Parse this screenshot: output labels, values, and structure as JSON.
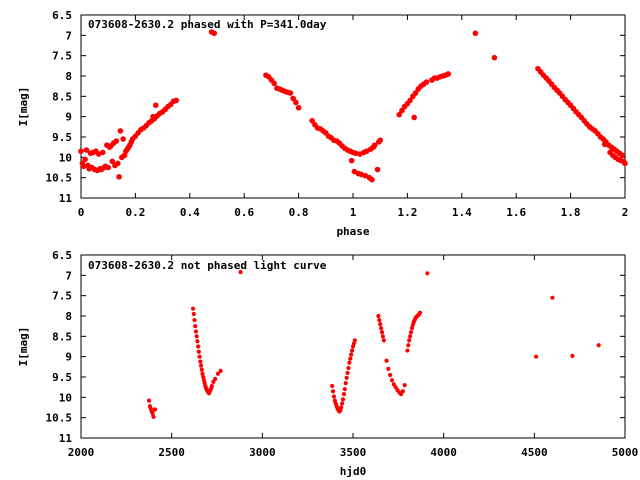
{
  "chart_data": [
    {
      "type": "scatter",
      "title": "073608-2630.2 phased with P=341.0day",
      "xlabel": "phase",
      "ylabel": "I[mag]",
      "xlim": [
        0,
        2
      ],
      "ylim": [
        11,
        6.5
      ],
      "y_inverted": true,
      "xticks": [
        "0",
        "0.2",
        "0.4",
        "0.6",
        "0.8",
        "1",
        "1.2",
        "1.4",
        "1.6",
        "1.8",
        "2"
      ],
      "yticks": [
        "6.5",
        "7",
        "7.5",
        "8",
        "8.5",
        "9",
        "9.5",
        "10",
        "10.5",
        "11"
      ],
      "grid": false,
      "marker_color": "#ff0000",
      "series": [
        {
          "points": [
            [
              0.0,
              9.85
            ],
            [
              0.005,
              10.15
            ],
            [
              0.01,
              10.22
            ],
            [
              0.015,
              10.05
            ],
            [
              0.02,
              9.82
            ],
            [
              0.025,
              10.2
            ],
            [
              0.03,
              10.28
            ],
            [
              0.035,
              9.9
            ],
            [
              0.04,
              10.25
            ],
            [
              0.045,
              9.88
            ],
            [
              0.05,
              10.3
            ],
            [
              0.055,
              9.85
            ],
            [
              0.06,
              10.32
            ],
            [
              0.065,
              9.92
            ],
            [
              0.07,
              10.28
            ],
            [
              0.075,
              10.3
            ],
            [
              0.08,
              9.88
            ],
            [
              0.085,
              10.25
            ],
            [
              0.09,
              10.22
            ],
            [
              0.095,
              9.7
            ],
            [
              0.1,
              10.25
            ],
            [
              0.105,
              9.75
            ],
            [
              0.11,
              9.72
            ],
            [
              0.115,
              10.1
            ],
            [
              0.12,
              9.65
            ],
            [
              0.125,
              10.2
            ],
            [
              0.13,
              9.6
            ],
            [
              0.135,
              10.15
            ],
            [
              0.14,
              10.48
            ],
            [
              0.145,
              9.35
            ],
            [
              0.15,
              10.0
            ],
            [
              0.155,
              9.55
            ],
            [
              0.16,
              9.95
            ],
            [
              0.165,
              9.85
            ],
            [
              0.17,
              9.8
            ],
            [
              0.175,
              9.75
            ],
            [
              0.18,
              9.7
            ],
            [
              0.185,
              9.62
            ],
            [
              0.19,
              9.55
            ],
            [
              0.2,
              9.48
            ],
            [
              0.21,
              9.4
            ],
            [
              0.22,
              9.32
            ],
            [
              0.23,
              9.28
            ],
            [
              0.24,
              9.22
            ],
            [
              0.25,
              9.15
            ],
            [
              0.26,
              9.1
            ],
            [
              0.265,
              9.0
            ],
            [
              0.27,
              9.05
            ],
            [
              0.275,
              8.72
            ],
            [
              0.28,
              8.98
            ],
            [
              0.29,
              8.92
            ],
            [
              0.3,
              8.88
            ],
            [
              0.31,
              8.82
            ],
            [
              0.32,
              8.75
            ],
            [
              0.33,
              8.7
            ],
            [
              0.34,
              8.62
            ],
            [
              0.35,
              8.6
            ],
            [
              0.48,
              6.92
            ],
            [
              0.49,
              6.95
            ],
            [
              0.68,
              7.98
            ],
            [
              0.69,
              8.02
            ],
            [
              0.7,
              8.1
            ],
            [
              0.71,
              8.18
            ],
            [
              0.72,
              8.3
            ],
            [
              0.73,
              8.32
            ],
            [
              0.74,
              8.35
            ],
            [
              0.75,
              8.38
            ],
            [
              0.76,
              8.4
            ],
            [
              0.77,
              8.42
            ],
            [
              0.78,
              8.55
            ],
            [
              0.79,
              8.65
            ],
            [
              0.8,
              8.78
            ],
            [
              0.85,
              9.1
            ],
            [
              0.86,
              9.2
            ],
            [
              0.87,
              9.28
            ],
            [
              0.88,
              9.3
            ],
            [
              0.89,
              9.35
            ],
            [
              0.9,
              9.4
            ],
            [
              0.91,
              9.48
            ],
            [
              0.92,
              9.52
            ],
            [
              0.93,
              9.58
            ],
            [
              0.94,
              9.6
            ],
            [
              0.95,
              9.65
            ],
            [
              0.96,
              9.72
            ],
            [
              0.97,
              9.78
            ],
            [
              0.98,
              9.82
            ],
            [
              0.99,
              9.85
            ],
            [
              0.995,
              10.08
            ],
            [
              1.0,
              9.88
            ],
            [
              1.005,
              10.35
            ],
            [
              1.01,
              9.9
            ],
            [
              1.02,
              10.4
            ],
            [
              1.025,
              9.92
            ],
            [
              1.03,
              10.42
            ],
            [
              1.04,
              9.88
            ],
            [
              1.045,
              10.45
            ],
            [
              1.05,
              9.85
            ],
            [
              1.06,
              10.5
            ],
            [
              1.065,
              9.8
            ],
            [
              1.07,
              10.55
            ],
            [
              1.075,
              9.75
            ],
            [
              1.08,
              9.7
            ],
            [
              1.09,
              10.3
            ],
            [
              1.095,
              9.62
            ],
            [
              1.1,
              9.58
            ],
            [
              1.17,
              8.95
            ],
            [
              1.18,
              8.85
            ],
            [
              1.19,
              8.75
            ],
            [
              1.2,
              8.68
            ],
            [
              1.21,
              8.6
            ],
            [
              1.22,
              8.5
            ],
            [
              1.225,
              9.02
            ],
            [
              1.23,
              8.42
            ],
            [
              1.24,
              8.32
            ],
            [
              1.25,
              8.25
            ],
            [
              1.26,
              8.2
            ],
            [
              1.27,
              8.15
            ],
            [
              1.29,
              8.1
            ],
            [
              1.3,
              8.05
            ],
            [
              1.31,
              8.05
            ],
            [
              1.32,
              8.02
            ],
            [
              1.33,
              8.0
            ],
            [
              1.34,
              7.98
            ],
            [
              1.35,
              7.95
            ],
            [
              1.45,
              6.95
            ],
            [
              1.52,
              7.55
            ],
            [
              1.68,
              7.82
            ],
            [
              1.69,
              7.9
            ],
            [
              1.7,
              7.98
            ],
            [
              1.71,
              8.05
            ],
            [
              1.72,
              8.12
            ],
            [
              1.73,
              8.2
            ],
            [
              1.74,
              8.28
            ],
            [
              1.75,
              8.35
            ],
            [
              1.76,
              8.42
            ],
            [
              1.77,
              8.5
            ],
            [
              1.78,
              8.58
            ],
            [
              1.79,
              8.65
            ],
            [
              1.8,
              8.72
            ],
            [
              1.81,
              8.8
            ],
            [
              1.82,
              8.88
            ],
            [
              1.83,
              8.95
            ],
            [
              1.84,
              9.02
            ],
            [
              1.85,
              9.1
            ],
            [
              1.86,
              9.18
            ],
            [
              1.87,
              9.25
            ],
            [
              1.88,
              9.3
            ],
            [
              1.89,
              9.35
            ],
            [
              1.9,
              9.42
            ],
            [
              1.91,
              9.5
            ],
            [
              1.92,
              9.55
            ],
            [
              1.925,
              9.68
            ],
            [
              1.93,
              9.62
            ],
            [
              1.94,
              9.7
            ],
            [
              1.945,
              9.88
            ],
            [
              1.95,
              9.75
            ],
            [
              1.955,
              9.95
            ],
            [
              1.96,
              9.8
            ],
            [
              1.965,
              10.0
            ],
            [
              1.97,
              9.85
            ],
            [
              1.975,
              10.05
            ],
            [
              1.98,
              9.9
            ],
            [
              1.985,
              10.08
            ],
            [
              1.99,
              9.95
            ],
            [
              1.995,
              10.1
            ],
            [
              2.0,
              10.15
            ]
          ]
        }
      ]
    },
    {
      "type": "scatter",
      "title": "073608-2630.2 not phased light curve",
      "xlabel": "hjd0",
      "ylabel": "I[mag]",
      "xlim": [
        2000,
        5000
      ],
      "ylim": [
        11,
        6.5
      ],
      "y_inverted": true,
      "xticks": [
        "2000",
        "2500",
        "3000",
        "3500",
        "4000",
        "4500",
        "5000"
      ],
      "yticks": [
        "6.5",
        "7",
        "7.5",
        "8",
        "8.5",
        "9",
        "9.5",
        "10",
        "10.5",
        "11"
      ],
      "grid": false,
      "marker_color": "#ff0000",
      "series": [
        {
          "points": [
            [
              2375,
              10.08
            ],
            [
              2380,
              10.22
            ],
            [
              2385,
              10.28
            ],
            [
              2390,
              10.35
            ],
            [
              2395,
              10.4
            ],
            [
              2400,
              10.48
            ],
            [
              2408,
              10.3
            ],
            [
              2618,
              7.82
            ],
            [
              2622,
              7.95
            ],
            [
              2626,
              8.1
            ],
            [
              2630,
              8.25
            ],
            [
              2634,
              8.38
            ],
            [
              2638,
              8.5
            ],
            [
              2642,
              8.62
            ],
            [
              2646,
              8.75
            ],
            [
              2650,
              8.88
            ],
            [
              2654,
              9.0
            ],
            [
              2658,
              9.12
            ],
            [
              2662,
              9.22
            ],
            [
              2666,
              9.32
            ],
            [
              2670,
              9.42
            ],
            [
              2674,
              9.5
            ],
            [
              2678,
              9.58
            ],
            [
              2682,
              9.65
            ],
            [
              2686,
              9.72
            ],
            [
              2690,
              9.78
            ],
            [
              2694,
              9.82
            ],
            [
              2698,
              9.85
            ],
            [
              2702,
              9.88
            ],
            [
              2706,
              9.9
            ],
            [
              2710,
              9.85
            ],
            [
              2714,
              9.82
            ],
            [
              2718,
              9.78
            ],
            [
              2722,
              9.72
            ],
            [
              2730,
              9.62
            ],
            [
              2740,
              9.55
            ],
            [
              2755,
              9.42
            ],
            [
              2770,
              9.35
            ],
            [
              2880,
              6.92
            ],
            [
              3385,
              9.72
            ],
            [
              3390,
              9.85
            ],
            [
              3395,
              9.98
            ],
            [
              3400,
              10.08
            ],
            [
              3405,
              10.15
            ],
            [
              3410,
              10.22
            ],
            [
              3415,
              10.28
            ],
            [
              3420,
              10.32
            ],
            [
              3425,
              10.35
            ],
            [
              3430,
              10.32
            ],
            [
              3435,
              10.25
            ],
            [
              3440,
              10.15
            ],
            [
              3445,
              10.05
            ],
            [
              3450,
              9.92
            ],
            [
              3455,
              9.8
            ],
            [
              3460,
              9.65
            ],
            [
              3465,
              9.52
            ],
            [
              3470,
              9.4
            ],
            [
              3475,
              9.28
            ],
            [
              3480,
              9.15
            ],
            [
              3485,
              9.05
            ],
            [
              3490,
              8.95
            ],
            [
              3495,
              8.85
            ],
            [
              3500,
              8.75
            ],
            [
              3505,
              8.68
            ],
            [
              3510,
              8.6
            ],
            [
              3640,
              8.0
            ],
            [
              3645,
              8.1
            ],
            [
              3650,
              8.2
            ],
            [
              3655,
              8.3
            ],
            [
              3660,
              8.4
            ],
            [
              3665,
              8.5
            ],
            [
              3670,
              8.6
            ],
            [
              3685,
              9.1
            ],
            [
              3695,
              9.3
            ],
            [
              3705,
              9.45
            ],
            [
              3715,
              9.58
            ],
            [
              3725,
              9.68
            ],
            [
              3735,
              9.75
            ],
            [
              3745,
              9.82
            ],
            [
              3755,
              9.88
            ],
            [
              3765,
              9.92
            ],
            [
              3775,
              9.85
            ],
            [
              3785,
              9.7
            ],
            [
              3800,
              8.85
            ],
            [
              3805,
              8.72
            ],
            [
              3810,
              8.6
            ],
            [
              3815,
              8.5
            ],
            [
              3820,
              8.4
            ],
            [
              3825,
              8.3
            ],
            [
              3830,
              8.22
            ],
            [
              3835,
              8.15
            ],
            [
              3840,
              8.1
            ],
            [
              3845,
              8.05
            ],
            [
              3850,
              8.02
            ],
            [
              3855,
              8.0
            ],
            [
              3860,
              7.98
            ],
            [
              3865,
              7.95
            ],
            [
              3870,
              7.92
            ],
            [
              3910,
              6.95
            ],
            [
              4510,
              9.0
            ],
            [
              4600,
              7.55
            ],
            [
              4710,
              8.98
            ],
            [
              4855,
              8.72
            ]
          ]
        }
      ]
    }
  ]
}
